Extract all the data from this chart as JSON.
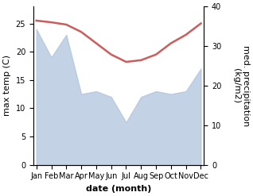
{
  "months": [
    "Jan",
    "Feb",
    "Mar",
    "Apr",
    "May",
    "Jun",
    "Jul",
    "Aug",
    "Sep",
    "Oct",
    "Nov",
    "Dec"
  ],
  "month_x": [
    0,
    1,
    2,
    3,
    4,
    5,
    6,
    7,
    8,
    9,
    10,
    11
  ],
  "temp_max": [
    25.5,
    25.2,
    24.8,
    23.5,
    21.5,
    19.5,
    18.2,
    18.5,
    19.5,
    21.5,
    23.0,
    25.0
  ],
  "area_left_scale": [
    24.0,
    19.0,
    23.0,
    12.5,
    13.0,
    12.0,
    7.5,
    12.0,
    13.0,
    12.5,
    13.0,
    17.0
  ],
  "temp_color": "#cd5c5c",
  "area_color": "#b0c4de",
  "area_alpha": 0.75,
  "temp_linewidth": 1.8,
  "ylim_left": [
    0,
    28
  ],
  "ylim_right": [
    0,
    40
  ],
  "xlabel": "date (month)",
  "ylabel_left": "max temp (C)",
  "ylabel_right": "med. precipitation\n(kg/m2)",
  "xlabel_fontsize": 8,
  "ylabel_fontsize": 8,
  "tick_fontsize": 7,
  "background_color": "#ffffff",
  "left_yticks": [
    0,
    5,
    10,
    15,
    20,
    25
  ],
  "right_yticks": [
    0,
    10,
    20,
    30,
    40
  ]
}
